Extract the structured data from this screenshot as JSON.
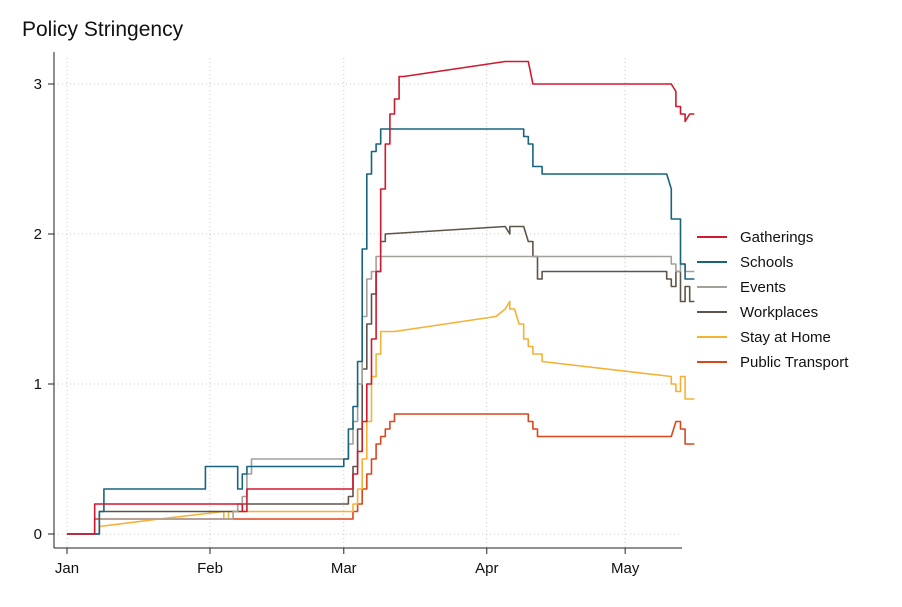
{
  "chart_data": {
    "type": "line",
    "title": "Policy Stringency",
    "xlabel": "",
    "ylabel": "",
    "x_ticks": [
      "Jan",
      "Feb",
      "Mar",
      "Apr",
      "May"
    ],
    "y_ticks": [
      0,
      1,
      2,
      3
    ],
    "xlim": [
      0,
      130
    ],
    "ylim": [
      0,
      3.2
    ],
    "grid": "dotted",
    "legend_position": "right",
    "series": [
      {
        "name": "Gatherings",
        "color": "#d0192e",
        "points": [
          [
            0,
            0
          ],
          [
            6,
            0
          ],
          [
            6,
            0.2
          ],
          [
            38,
            0.2
          ],
          [
            38,
            0.15
          ],
          [
            39,
            0.15
          ],
          [
            39,
            0.3
          ],
          [
            62,
            0.3
          ],
          [
            62,
            0.4
          ],
          [
            63,
            0.4
          ],
          [
            63,
            0.55
          ],
          [
            64,
            0.55
          ],
          [
            64,
            0.75
          ],
          [
            65,
            0.75
          ],
          [
            65,
            1.0
          ],
          [
            66,
            1.0
          ],
          [
            66,
            1.3
          ],
          [
            67,
            1.3
          ],
          [
            67,
            1.75
          ],
          [
            68,
            1.75
          ],
          [
            68,
            2.3
          ],
          [
            69,
            2.3
          ],
          [
            69,
            2.6
          ],
          [
            70,
            2.6
          ],
          [
            70,
            2.8
          ],
          [
            71,
            2.8
          ],
          [
            71,
            2.9
          ],
          [
            72,
            2.9
          ],
          [
            72,
            3.05
          ],
          [
            73,
            3.05
          ],
          [
            95,
            3.15
          ],
          [
            100,
            3.15
          ],
          [
            101,
            3.0
          ],
          [
            131,
            3.0
          ],
          [
            132,
            2.95
          ],
          [
            132,
            2.85
          ],
          [
            133,
            2.85
          ],
          [
            133,
            2.8
          ],
          [
            134,
            2.8
          ],
          [
            134,
            2.75
          ],
          [
            135,
            2.8
          ],
          [
            136,
            2.8
          ]
        ]
      },
      {
        "name": "Schools",
        "color": "#17657d",
        "points": [
          [
            0,
            0
          ],
          [
            7,
            0
          ],
          [
            7,
            0.15
          ],
          [
            8,
            0.15
          ],
          [
            8,
            0.3
          ],
          [
            30,
            0.3
          ],
          [
            30,
            0.45
          ],
          [
            37,
            0.45
          ],
          [
            37,
            0.3
          ],
          [
            38,
            0.3
          ],
          [
            38,
            0.4
          ],
          [
            39,
            0.4
          ],
          [
            39,
            0.45
          ],
          [
            60,
            0.45
          ],
          [
            60,
            0.5
          ],
          [
            61,
            0.5
          ],
          [
            61,
            0.7
          ],
          [
            62,
            0.7
          ],
          [
            62,
            0.85
          ],
          [
            63,
            0.85
          ],
          [
            63,
            1.15
          ],
          [
            64,
            1.15
          ],
          [
            64,
            1.9
          ],
          [
            65,
            1.9
          ],
          [
            65,
            2.4
          ],
          [
            66,
            2.4
          ],
          [
            66,
            2.55
          ],
          [
            67,
            2.55
          ],
          [
            67,
            2.6
          ],
          [
            68,
            2.6
          ],
          [
            68,
            2.7
          ],
          [
            99,
            2.7
          ],
          [
            99,
            2.65
          ],
          [
            100,
            2.65
          ],
          [
            100,
            2.6
          ],
          [
            101,
            2.6
          ],
          [
            101,
            2.45
          ],
          [
            102,
            2.45
          ],
          [
            103,
            2.45
          ],
          [
            103,
            2.4
          ],
          [
            130,
            2.4
          ],
          [
            131,
            2.3
          ],
          [
            131,
            2.1
          ],
          [
            133,
            2.1
          ],
          [
            133,
            1.8
          ],
          [
            134,
            1.8
          ],
          [
            134,
            1.7
          ],
          [
            136,
            1.7
          ]
        ]
      },
      {
        "name": "Events",
        "color": "#a3a09b",
        "points": [
          [
            0,
            0
          ],
          [
            7,
            0
          ],
          [
            7,
            0.1
          ],
          [
            36,
            0.1
          ],
          [
            36,
            0.15
          ],
          [
            37,
            0.15
          ],
          [
            37,
            0.2
          ],
          [
            38,
            0.2
          ],
          [
            38,
            0.25
          ],
          [
            39,
            0.25
          ],
          [
            39,
            0.4
          ],
          [
            40,
            0.4
          ],
          [
            40,
            0.5
          ],
          [
            61,
            0.5
          ],
          [
            61,
            0.6
          ],
          [
            62,
            0.6
          ],
          [
            62,
            0.75
          ],
          [
            63,
            0.75
          ],
          [
            63,
            1.0
          ],
          [
            64,
            1.0
          ],
          [
            64,
            1.45
          ],
          [
            65,
            1.45
          ],
          [
            65,
            1.7
          ],
          [
            66,
            1.7
          ],
          [
            66,
            1.75
          ],
          [
            67,
            1.75
          ],
          [
            67,
            1.85
          ],
          [
            131,
            1.85
          ],
          [
            131,
            1.8
          ],
          [
            132,
            1.8
          ],
          [
            132,
            1.75
          ],
          [
            133,
            1.75
          ],
          [
            133,
            1.8
          ],
          [
            134,
            1.8
          ],
          [
            134,
            1.75
          ],
          [
            136,
            1.75
          ]
        ]
      },
      {
        "name": "Workplaces",
        "color": "#5e544a",
        "points": [
          [
            0,
            0
          ],
          [
            7,
            0
          ],
          [
            7,
            0.15
          ],
          [
            38,
            0.15
          ],
          [
            38,
            0.2
          ],
          [
            61,
            0.2
          ],
          [
            61,
            0.25
          ],
          [
            62,
            0.25
          ],
          [
            62,
            0.45
          ],
          [
            63,
            0.45
          ],
          [
            63,
            0.7
          ],
          [
            64,
            0.7
          ],
          [
            64,
            1.1
          ],
          [
            65,
            1.1
          ],
          [
            65,
            1.4
          ],
          [
            66,
            1.4
          ],
          [
            66,
            1.6
          ],
          [
            67,
            1.6
          ],
          [
            67,
            1.75
          ],
          [
            68,
            1.75
          ],
          [
            68,
            1.95
          ],
          [
            69,
            1.95
          ],
          [
            69,
            2.0
          ],
          [
            95,
            2.05
          ],
          [
            96,
            2.0
          ],
          [
            96,
            2.05
          ],
          [
            99,
            2.05
          ],
          [
            100,
            1.95
          ],
          [
            101,
            1.95
          ],
          [
            101,
            1.85
          ],
          [
            102,
            1.85
          ],
          [
            102,
            1.7
          ],
          [
            103,
            1.7
          ],
          [
            103,
            1.75
          ],
          [
            130,
            1.75
          ],
          [
            130,
            1.7
          ],
          [
            131,
            1.7
          ],
          [
            131,
            1.65
          ],
          [
            132,
            1.65
          ],
          [
            132,
            1.75
          ],
          [
            133,
            1.75
          ],
          [
            133,
            1.55
          ],
          [
            134,
            1.55
          ],
          [
            134,
            1.65
          ],
          [
            135,
            1.65
          ],
          [
            135,
            1.55
          ],
          [
            136,
            1.55
          ]
        ]
      },
      {
        "name": "Stay at Home",
        "color": "#f5b233",
        "points": [
          [
            0,
            0
          ],
          [
            7,
            0
          ],
          [
            7,
            0.05
          ],
          [
            20,
            0.1
          ],
          [
            34,
            0.15
          ],
          [
            34,
            0.1
          ],
          [
            35,
            0.1
          ],
          [
            35,
            0.15
          ],
          [
            62,
            0.15
          ],
          [
            62,
            0.2
          ],
          [
            63,
            0.2
          ],
          [
            63,
            0.3
          ],
          [
            64,
            0.3
          ],
          [
            64,
            0.5
          ],
          [
            65,
            0.5
          ],
          [
            65,
            0.75
          ],
          [
            66,
            0.75
          ],
          [
            66,
            1.05
          ],
          [
            67,
            1.05
          ],
          [
            67,
            1.2
          ],
          [
            68,
            1.2
          ],
          [
            68,
            1.35
          ],
          [
            71,
            1.35
          ],
          [
            71,
            1.35
          ],
          [
            93,
            1.45
          ],
          [
            95,
            1.5
          ],
          [
            96,
            1.55
          ],
          [
            96,
            1.5
          ],
          [
            97,
            1.5
          ],
          [
            98,
            1.4
          ],
          [
            99,
            1.4
          ],
          [
            99,
            1.3
          ],
          [
            100,
            1.3
          ],
          [
            100,
            1.25
          ],
          [
            101,
            1.25
          ],
          [
            101,
            1.2
          ],
          [
            103,
            1.2
          ],
          [
            103,
            1.15
          ],
          [
            131,
            1.05
          ],
          [
            131,
            1.0
          ],
          [
            132,
            1.0
          ],
          [
            132,
            0.95
          ],
          [
            133,
            0.95
          ],
          [
            133,
            1.05
          ],
          [
            134,
            1.05
          ],
          [
            134,
            0.9
          ],
          [
            136,
            0.9
          ]
        ]
      },
      {
        "name": "Public Transport",
        "color": "#d9471d",
        "points": [
          [
            0,
            0
          ],
          [
            6,
            0
          ],
          [
            6,
            0.1
          ],
          [
            62,
            0.1
          ],
          [
            62,
            0.15
          ],
          [
            63,
            0.15
          ],
          [
            63,
            0.2
          ],
          [
            64,
            0.2
          ],
          [
            64,
            0.3
          ],
          [
            65,
            0.3
          ],
          [
            65,
            0.4
          ],
          [
            66,
            0.4
          ],
          [
            66,
            0.5
          ],
          [
            67,
            0.5
          ],
          [
            67,
            0.6
          ],
          [
            68,
            0.6
          ],
          [
            68,
            0.65
          ],
          [
            69,
            0.65
          ],
          [
            69,
            0.7
          ],
          [
            70,
            0.7
          ],
          [
            70,
            0.75
          ],
          [
            71,
            0.75
          ],
          [
            71,
            0.8
          ],
          [
            100,
            0.8
          ],
          [
            100,
            0.75
          ],
          [
            101,
            0.75
          ],
          [
            101,
            0.7
          ],
          [
            102,
            0.7
          ],
          [
            102,
            0.65
          ],
          [
            131,
            0.65
          ],
          [
            132,
            0.75
          ],
          [
            133,
            0.75
          ],
          [
            133,
            0.7
          ],
          [
            134,
            0.7
          ],
          [
            134,
            0.6
          ],
          [
            136,
            0.6
          ]
        ]
      }
    ]
  }
}
